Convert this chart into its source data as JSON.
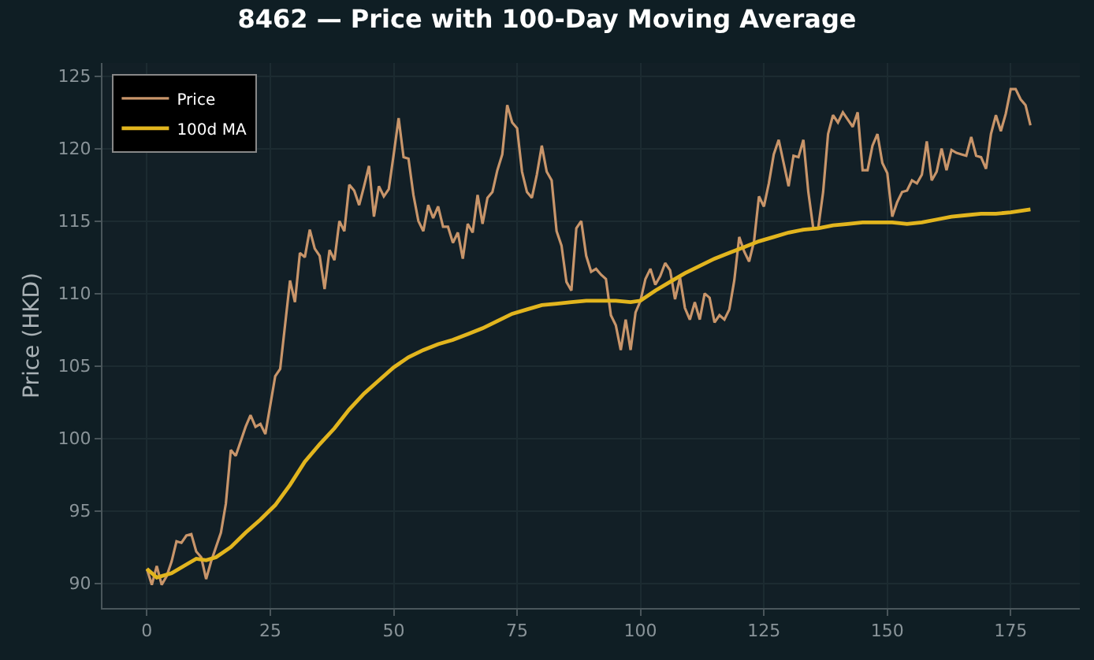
{
  "chart_data": {
    "type": "line",
    "title": "8462 — Price with 100-Day Moving Average",
    "ylabel": "Price (HKD)",
    "xlim": [
      -9,
      189
    ],
    "xticks": [
      0,
      25,
      50,
      75,
      100,
      125,
      150,
      175
    ],
    "ylim": [
      88.3,
      125.9
    ],
    "yticks": [
      90,
      95,
      100,
      105,
      110,
      115,
      120,
      125
    ],
    "grid": true,
    "legend": "top left",
    "marker": "none",
    "line_style": "solid",
    "series": [
      {
        "name": "Price",
        "color": "#c8956a",
        "x": [
          0,
          1,
          2,
          3,
          4,
          5,
          6,
          7,
          8,
          9,
          10,
          11,
          12,
          13,
          15,
          16,
          17,
          18,
          20,
          21,
          22,
          23,
          24,
          26,
          27,
          29,
          30,
          31,
          32,
          33,
          34,
          35,
          36,
          37,
          38,
          39,
          40,
          41,
          42,
          43,
          44,
          45,
          46,
          47,
          48,
          49,
          50,
          51,
          52,
          53,
          54,
          55,
          56,
          57,
          58,
          59,
          60,
          61,
          62,
          63,
          64,
          65,
          66,
          67,
          68,
          69,
          70,
          71,
          72,
          73,
          74,
          75,
          76,
          77,
          78,
          79,
          80,
          81,
          82,
          83,
          84,
          85,
          86,
          87,
          88,
          89,
          90,
          91,
          92,
          93,
          94,
          95,
          96,
          97,
          98,
          99,
          100,
          101,
          102,
          103,
          104,
          105,
          106,
          107,
          108,
          109,
          110,
          111,
          112,
          113,
          114,
          115,
          116,
          117,
          118,
          119,
          120,
          121,
          122,
          123,
          124,
          125,
          126,
          127,
          128,
          129,
          130,
          131,
          132,
          133,
          134,
          135,
          136,
          137,
          138,
          139,
          140,
          141,
          142,
          143,
          144,
          145,
          146,
          147,
          148,
          149,
          150,
          151,
          152,
          153,
          154,
          155,
          156,
          157,
          158,
          159,
          160,
          161,
          162,
          163,
          164,
          165,
          166,
          167,
          168,
          169,
          170,
          171,
          172,
          173,
          174,
          175,
          176,
          177,
          178,
          179
        ],
        "values": [
          91.0,
          89.9,
          91.2,
          89.9,
          90.5,
          91.5,
          92.9,
          92.8,
          93.3,
          93.4,
          92.2,
          91.8,
          90.3,
          91.5,
          93.5,
          95.5,
          99.2,
          98.8,
          100.8,
          101.6,
          100.8,
          101.0,
          100.3,
          104.3,
          104.8,
          110.9,
          109.4,
          112.8,
          112.5,
          114.4,
          113.1,
          112.6,
          110.3,
          113.0,
          112.3,
          115.0,
          114.3,
          117.5,
          117.1,
          116.1,
          117.4,
          118.8,
          115.3,
          117.4,
          116.7,
          117.2,
          119.6,
          122.1,
          119.4,
          119.3,
          116.8,
          115.0,
          114.3,
          116.1,
          115.2,
          116.0,
          114.6,
          114.6,
          113.5,
          114.2,
          112.4,
          114.8,
          114.2,
          116.8,
          114.8,
          116.6,
          117.0,
          118.5,
          119.6,
          123.0,
          121.8,
          121.4,
          118.4,
          117.0,
          116.6,
          118.2,
          120.2,
          118.4,
          117.8,
          114.3,
          113.3,
          110.8,
          110.2,
          114.5,
          115.0,
          112.6,
          111.5,
          111.7,
          111.3,
          111.0,
          108.5,
          107.8,
          106.1,
          108.2,
          106.1,
          108.7,
          109.5,
          111.0,
          111.7,
          110.6,
          111.2,
          112.1,
          111.6,
          109.6,
          111.1,
          109.0,
          108.2,
          109.4,
          108.2,
          110.0,
          109.7,
          108.0,
          108.5,
          108.2,
          108.9,
          110.9,
          113.9,
          112.9,
          112.2,
          113.6,
          116.7,
          116.0,
          117.6,
          119.6,
          120.6,
          119.0,
          117.4,
          119.5,
          119.4,
          120.6,
          117.0,
          114.5,
          114.5,
          117.0,
          121.0,
          122.3,
          121.8,
          122.5,
          122.0,
          121.5,
          122.5,
          118.5,
          118.5,
          120.2,
          121.0,
          119.0,
          118.3,
          115.3,
          116.3,
          117.0,
          117.1,
          117.8,
          117.6,
          118.2,
          120.5,
          117.8,
          118.4,
          120.0,
          118.5,
          119.9,
          119.7,
          119.6,
          119.5,
          120.8,
          119.5,
          119.4,
          118.6,
          121.0,
          122.3,
          121.2,
          122.4,
          124.1,
          124.1,
          123.4,
          123.0,
          121.6
        ]
      },
      {
        "name": "100d MA",
        "color": "#e2b51e",
        "x": [
          0,
          2,
          5,
          8,
          10,
          12,
          14,
          17,
          20,
          23,
          26,
          29,
          32,
          35,
          38,
          41,
          44,
          47,
          50,
          53,
          56,
          59,
          62,
          65,
          68,
          71,
          74,
          77,
          80,
          83,
          86,
          89,
          92,
          95,
          98,
          100,
          103,
          106,
          109,
          112,
          115,
          118,
          121,
          124,
          127,
          130,
          133,
          136,
          139,
          142,
          145,
          148,
          151,
          154,
          157,
          160,
          163,
          166,
          169,
          172,
          175,
          179
        ],
        "values": [
          91.0,
          90.4,
          90.7,
          91.3,
          91.7,
          91.6,
          91.8,
          92.5,
          93.5,
          94.4,
          95.4,
          96.8,
          98.4,
          99.6,
          100.7,
          102.0,
          103.1,
          104.0,
          104.9,
          105.6,
          106.1,
          106.5,
          106.8,
          107.2,
          107.6,
          108.1,
          108.6,
          108.9,
          109.2,
          109.3,
          109.4,
          109.5,
          109.5,
          109.5,
          109.4,
          109.5,
          110.2,
          110.8,
          111.4,
          111.9,
          112.4,
          112.8,
          113.2,
          113.6,
          113.9,
          114.2,
          114.4,
          114.5,
          114.7,
          114.8,
          114.9,
          114.9,
          114.9,
          114.8,
          114.9,
          115.1,
          115.3,
          115.4,
          115.5,
          115.5,
          115.6,
          115.8
        ]
      }
    ]
  }
}
